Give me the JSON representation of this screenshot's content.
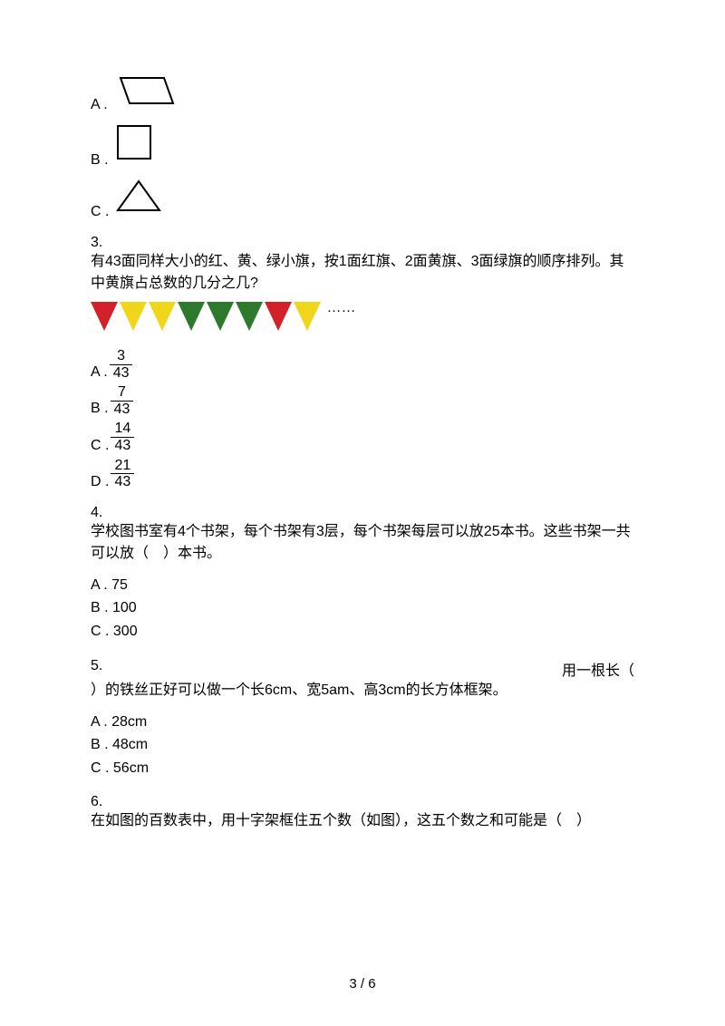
{
  "shapes_question": {
    "options": [
      {
        "label": "A .",
        "shape": "parallelogram",
        "stroke": "#000000"
      },
      {
        "label": "B .",
        "shape": "square",
        "stroke": "#000000"
      },
      {
        "label": "C .",
        "shape": "triangle",
        "stroke": "#000000"
      }
    ]
  },
  "q3": {
    "number": "3.",
    "text": "有43面同样大小的红、黄、绿小旗，按1面红旗、2面黄旗、3面绿旗的顺序排列。其中黄旗占总数的几分之几?",
    "ellipsis": "……",
    "flags": [
      "#d22128",
      "#f1d51a",
      "#f1d51a",
      "#2d7a2d",
      "#2d7a2d",
      "#2d7a2d",
      "#d22128",
      "#f1d51a"
    ],
    "options": [
      {
        "label": "A .",
        "num": "3",
        "den": "43"
      },
      {
        "label": "B .",
        "num": "7",
        "den": "43"
      },
      {
        "label": "C .",
        "num": "14",
        "den": "43"
      },
      {
        "label": "D .",
        "num": "21",
        "den": "43"
      }
    ]
  },
  "q4": {
    "number": "4.",
    "text": "学校图书室有4个书架，每个书架有3层，每个书架每层可以放25本书。这些书架一共可以放（　）本书。",
    "options": {
      "a": "A . 75",
      "b": "B . 100",
      "c": "C . 300"
    }
  },
  "q5": {
    "number": "5.",
    "right_text": "用一根长（",
    "line2": "）的铁丝正好可以做一个长6cm、宽5am、高3cm的长方体框架。",
    "options": {
      "a": "A . 28cm",
      "b": "B . 48cm",
      "c": "C . 56cm"
    }
  },
  "q6": {
    "number": "6.",
    "text": "在如图的百数表中，用十字架框住五个数（如图），这五个数之和可能是（　）"
  },
  "footer": "3 / 6",
  "layout": {
    "flag_w": 30,
    "flag_h": 34,
    "flag_gap": 2
  }
}
